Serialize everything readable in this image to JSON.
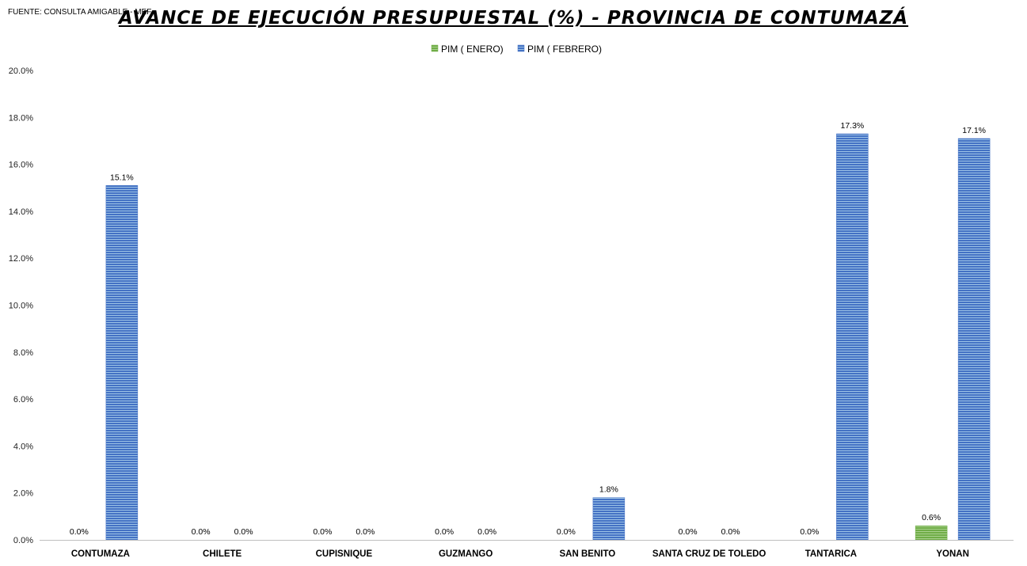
{
  "source": "FUENTE: CONSULTA AMIGABLE - MEF",
  "chart_data": {
    "type": "bar",
    "title": "AVANCE DE EJECUCIÓN PRESUPUESTAL (%)  - PROVINCIA DE CONTUMAZÁ",
    "categories": [
      "CONTUMAZA",
      "CHILETE",
      "CUPISNIQUE",
      "GUZMANGO",
      "SAN BENITO",
      "SANTA CRUZ DE TOLEDO",
      "TANTARICA",
      "YONAN"
    ],
    "series": [
      {
        "name": "PIM ( ENERO)",
        "color": "#70ad47",
        "values": [
          0.0,
          0.0,
          0.0,
          0.0,
          0.0,
          0.0,
          0.0,
          0.6
        ],
        "labels": [
          "0.0%",
          "0.0%",
          "0.0%",
          "0.0%",
          "0.0%",
          "0.0%",
          "0.0%",
          "0.6%"
        ]
      },
      {
        "name": "PIM ( FEBRERO)",
        "color": "#4472c4",
        "values": [
          15.1,
          0.0,
          0.0,
          0.0,
          1.8,
          0.0,
          17.3,
          17.1
        ],
        "labels": [
          "15.1%",
          "0.0%",
          "0.0%",
          "0.0%",
          "1.8%",
          "0.0%",
          "17.3%",
          "17.1%"
        ]
      }
    ],
    "y_ticks": [
      "0.0%",
      "2.0%",
      "4.0%",
      "6.0%",
      "8.0%",
      "10.0%",
      "12.0%",
      "14.0%",
      "16.0%",
      "18.0%",
      "20.0%"
    ],
    "ylim": [
      0,
      20
    ],
    "legend_position": "top",
    "grid": false
  }
}
